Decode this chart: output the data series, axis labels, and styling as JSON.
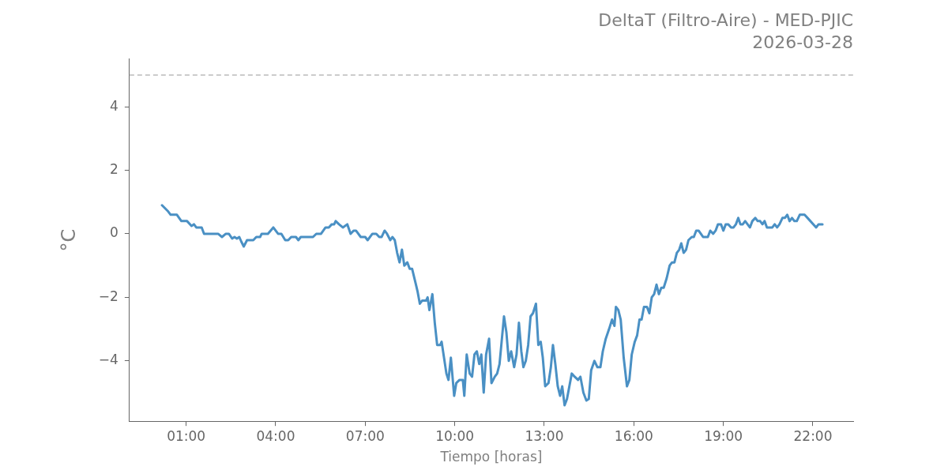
{
  "chart_data": {
    "type": "line",
    "title": "DeltaT (Filtro-Aire) - MED-PJIC",
    "subtitle": "2026-03-28",
    "xlabel": "Tiempo [horas]",
    "ylabel": "°C",
    "xlim": [
      -0.9,
      23.35
    ],
    "ylim": [
      -5.9,
      5.5
    ],
    "xticks": [
      {
        "value": 1,
        "label": "01:00"
      },
      {
        "value": 4,
        "label": "04:00"
      },
      {
        "value": 7,
        "label": "07:00"
      },
      {
        "value": 10,
        "label": "10:00"
      },
      {
        "value": 13,
        "label": "13:00"
      },
      {
        "value": 16,
        "label": "16:00"
      },
      {
        "value": 19,
        "label": "19:00"
      },
      {
        "value": 22,
        "label": "22:00"
      }
    ],
    "yticks": [
      -4,
      -2,
      0,
      2,
      4
    ],
    "grid": false,
    "legend": false,
    "marker": "none",
    "line_style": "solid",
    "ref_lines": [
      {
        "axis": "y",
        "value": 5,
        "color": "#bbbbbb",
        "line_style": "dashed"
      }
    ],
    "series": [
      {
        "color": "#4a90c4",
        "x": [
          0.19,
          0.4,
          0.48,
          0.69,
          0.84,
          1.03,
          1.18,
          1.26,
          1.34,
          1.52,
          1.6,
          2.07,
          2.2,
          2.33,
          2.43,
          2.54,
          2.62,
          2.7,
          2.78,
          2.85,
          2.93,
          3.04,
          3.25,
          3.35,
          3.48,
          3.53,
          3.74,
          3.92,
          4.08,
          4.19,
          4.32,
          4.42,
          4.52,
          4.68,
          4.76,
          4.84,
          5.25,
          5.36,
          5.52,
          5.67,
          5.78,
          5.88,
          5.96,
          6.01,
          6.12,
          6.25,
          6.4,
          6.51,
          6.61,
          6.69,
          6.85,
          7.0,
          7.08,
          7.24,
          7.37,
          7.47,
          7.55,
          7.65,
          7.73,
          7.84,
          7.91,
          7.99,
          8.07,
          8.15,
          8.23,
          8.31,
          8.41,
          8.49,
          8.57,
          8.7,
          8.75,
          8.83,
          8.91,
          9.04,
          9.09,
          9.15,
          9.25,
          9.33,
          9.41,
          9.51,
          9.56,
          9.64,
          9.72,
          9.79,
          9.87,
          9.98,
          10.05,
          10.16,
          10.27,
          10.32,
          10.4,
          10.5,
          10.58,
          10.66,
          10.74,
          10.82,
          10.89,
          10.97,
          11.05,
          11.15,
          11.23,
          11.34,
          11.42,
          11.5,
          11.57,
          11.65,
          11.73,
          11.81,
          11.89,
          11.99,
          12.07,
          12.15,
          12.23,
          12.3,
          12.38,
          12.46,
          12.54,
          12.62,
          12.72,
          12.8,
          12.88,
          12.95,
          13.03,
          13.14,
          13.22,
          13.29,
          13.37,
          13.45,
          13.53,
          13.6,
          13.68,
          13.76,
          13.92,
          14.02,
          14.13,
          14.21,
          14.31,
          14.41,
          14.49,
          14.57,
          14.68,
          14.78,
          14.88,
          14.96,
          15.06,
          15.17,
          15.27,
          15.35,
          15.4,
          15.48,
          15.56,
          15.66,
          15.77,
          15.85,
          15.93,
          16.03,
          16.11,
          16.19,
          16.26,
          16.34,
          16.44,
          16.52,
          16.6,
          16.68,
          16.76,
          16.84,
          16.92,
          17.0,
          17.1,
          17.2,
          17.28,
          17.36,
          17.44,
          17.52,
          17.59,
          17.67,
          17.75,
          17.83,
          17.94,
          18.01,
          18.09,
          18.17,
          18.32,
          18.48,
          18.56,
          18.66,
          18.74,
          18.82,
          18.92,
          19.0,
          19.08,
          19.16,
          19.26,
          19.34,
          19.42,
          19.5,
          19.57,
          19.65,
          19.73,
          19.81,
          19.89,
          19.97,
          20.07,
          20.15,
          20.23,
          20.31,
          20.38,
          20.46,
          20.64,
          20.72,
          20.8,
          20.88,
          20.98,
          21.06,
          21.14,
          21.22,
          21.3,
          21.38,
          21.46,
          21.56,
          21.72,
          21.82,
          22.11,
          22.19,
          22.32
        ],
        "values": [
          0.9,
          0.7,
          0.6,
          0.6,
          0.4,
          0.4,
          0.25,
          0.3,
          0.2,
          0.2,
          0.0,
          0.0,
          -0.1,
          0.0,
          0.0,
          -0.15,
          -0.1,
          -0.15,
          -0.1,
          -0.25,
          -0.4,
          -0.2,
          -0.2,
          -0.1,
          -0.1,
          0.0,
          0.0,
          0.2,
          0.0,
          0.0,
          -0.2,
          -0.2,
          -0.1,
          -0.1,
          -0.2,
          -0.1,
          -0.1,
          0.0,
          0.0,
          0.2,
          0.2,
          0.3,
          0.3,
          0.4,
          0.3,
          0.2,
          0.3,
          0.0,
          0.1,
          0.1,
          -0.1,
          -0.1,
          -0.2,
          0.0,
          0.0,
          -0.1,
          -0.1,
          0.1,
          0.0,
          -0.2,
          -0.1,
          -0.2,
          -0.6,
          -0.9,
          -0.5,
          -1.0,
          -0.9,
          -1.1,
          -1.1,
          -1.6,
          -1.8,
          -2.2,
          -2.1,
          -2.1,
          -2.0,
          -2.4,
          -1.9,
          -2.8,
          -3.5,
          -3.5,
          -3.4,
          -3.9,
          -4.4,
          -4.6,
          -3.9,
          -5.1,
          -4.7,
          -4.6,
          -4.6,
          -5.1,
          -3.8,
          -4.4,
          -4.5,
          -3.8,
          -3.7,
          -4.1,
          -3.8,
          -5.0,
          -3.8,
          -3.3,
          -4.7,
          -4.5,
          -4.4,
          -4.1,
          -3.4,
          -2.6,
          -3.1,
          -4.0,
          -3.7,
          -4.2,
          -3.8,
          -2.8,
          -3.7,
          -4.2,
          -4.0,
          -3.5,
          -2.6,
          -2.5,
          -2.2,
          -3.5,
          -3.4,
          -3.9,
          -4.8,
          -4.7,
          -4.2,
          -3.5,
          -4.1,
          -4.8,
          -5.1,
          -4.8,
          -5.4,
          -5.2,
          -4.4,
          -4.5,
          -4.6,
          -4.5,
          -5.0,
          -5.25,
          -5.2,
          -4.3,
          -4.0,
          -4.2,
          -4.2,
          -3.7,
          -3.3,
          -3.0,
          -2.7,
          -2.9,
          -2.3,
          -2.4,
          -2.7,
          -3.9,
          -4.8,
          -4.6,
          -3.8,
          -3.4,
          -3.2,
          -2.7,
          -2.7,
          -2.3,
          -2.3,
          -2.5,
          -2.0,
          -1.9,
          -1.6,
          -1.9,
          -1.7,
          -1.7,
          -1.4,
          -1.0,
          -0.9,
          -0.9,
          -0.6,
          -0.5,
          -0.3,
          -0.6,
          -0.5,
          -0.2,
          -0.1,
          -0.1,
          0.1,
          0.1,
          -0.1,
          -0.1,
          0.1,
          0.0,
          0.1,
          0.3,
          0.3,
          0.1,
          0.3,
          0.3,
          0.2,
          0.2,
          0.3,
          0.5,
          0.3,
          0.3,
          0.4,
          0.3,
          0.2,
          0.4,
          0.5,
          0.4,
          0.4,
          0.3,
          0.4,
          0.2,
          0.2,
          0.3,
          0.2,
          0.3,
          0.5,
          0.5,
          0.6,
          0.4,
          0.5,
          0.4,
          0.4,
          0.6,
          0.6,
          0.5,
          0.2,
          0.3,
          0.3
        ]
      }
    ]
  }
}
